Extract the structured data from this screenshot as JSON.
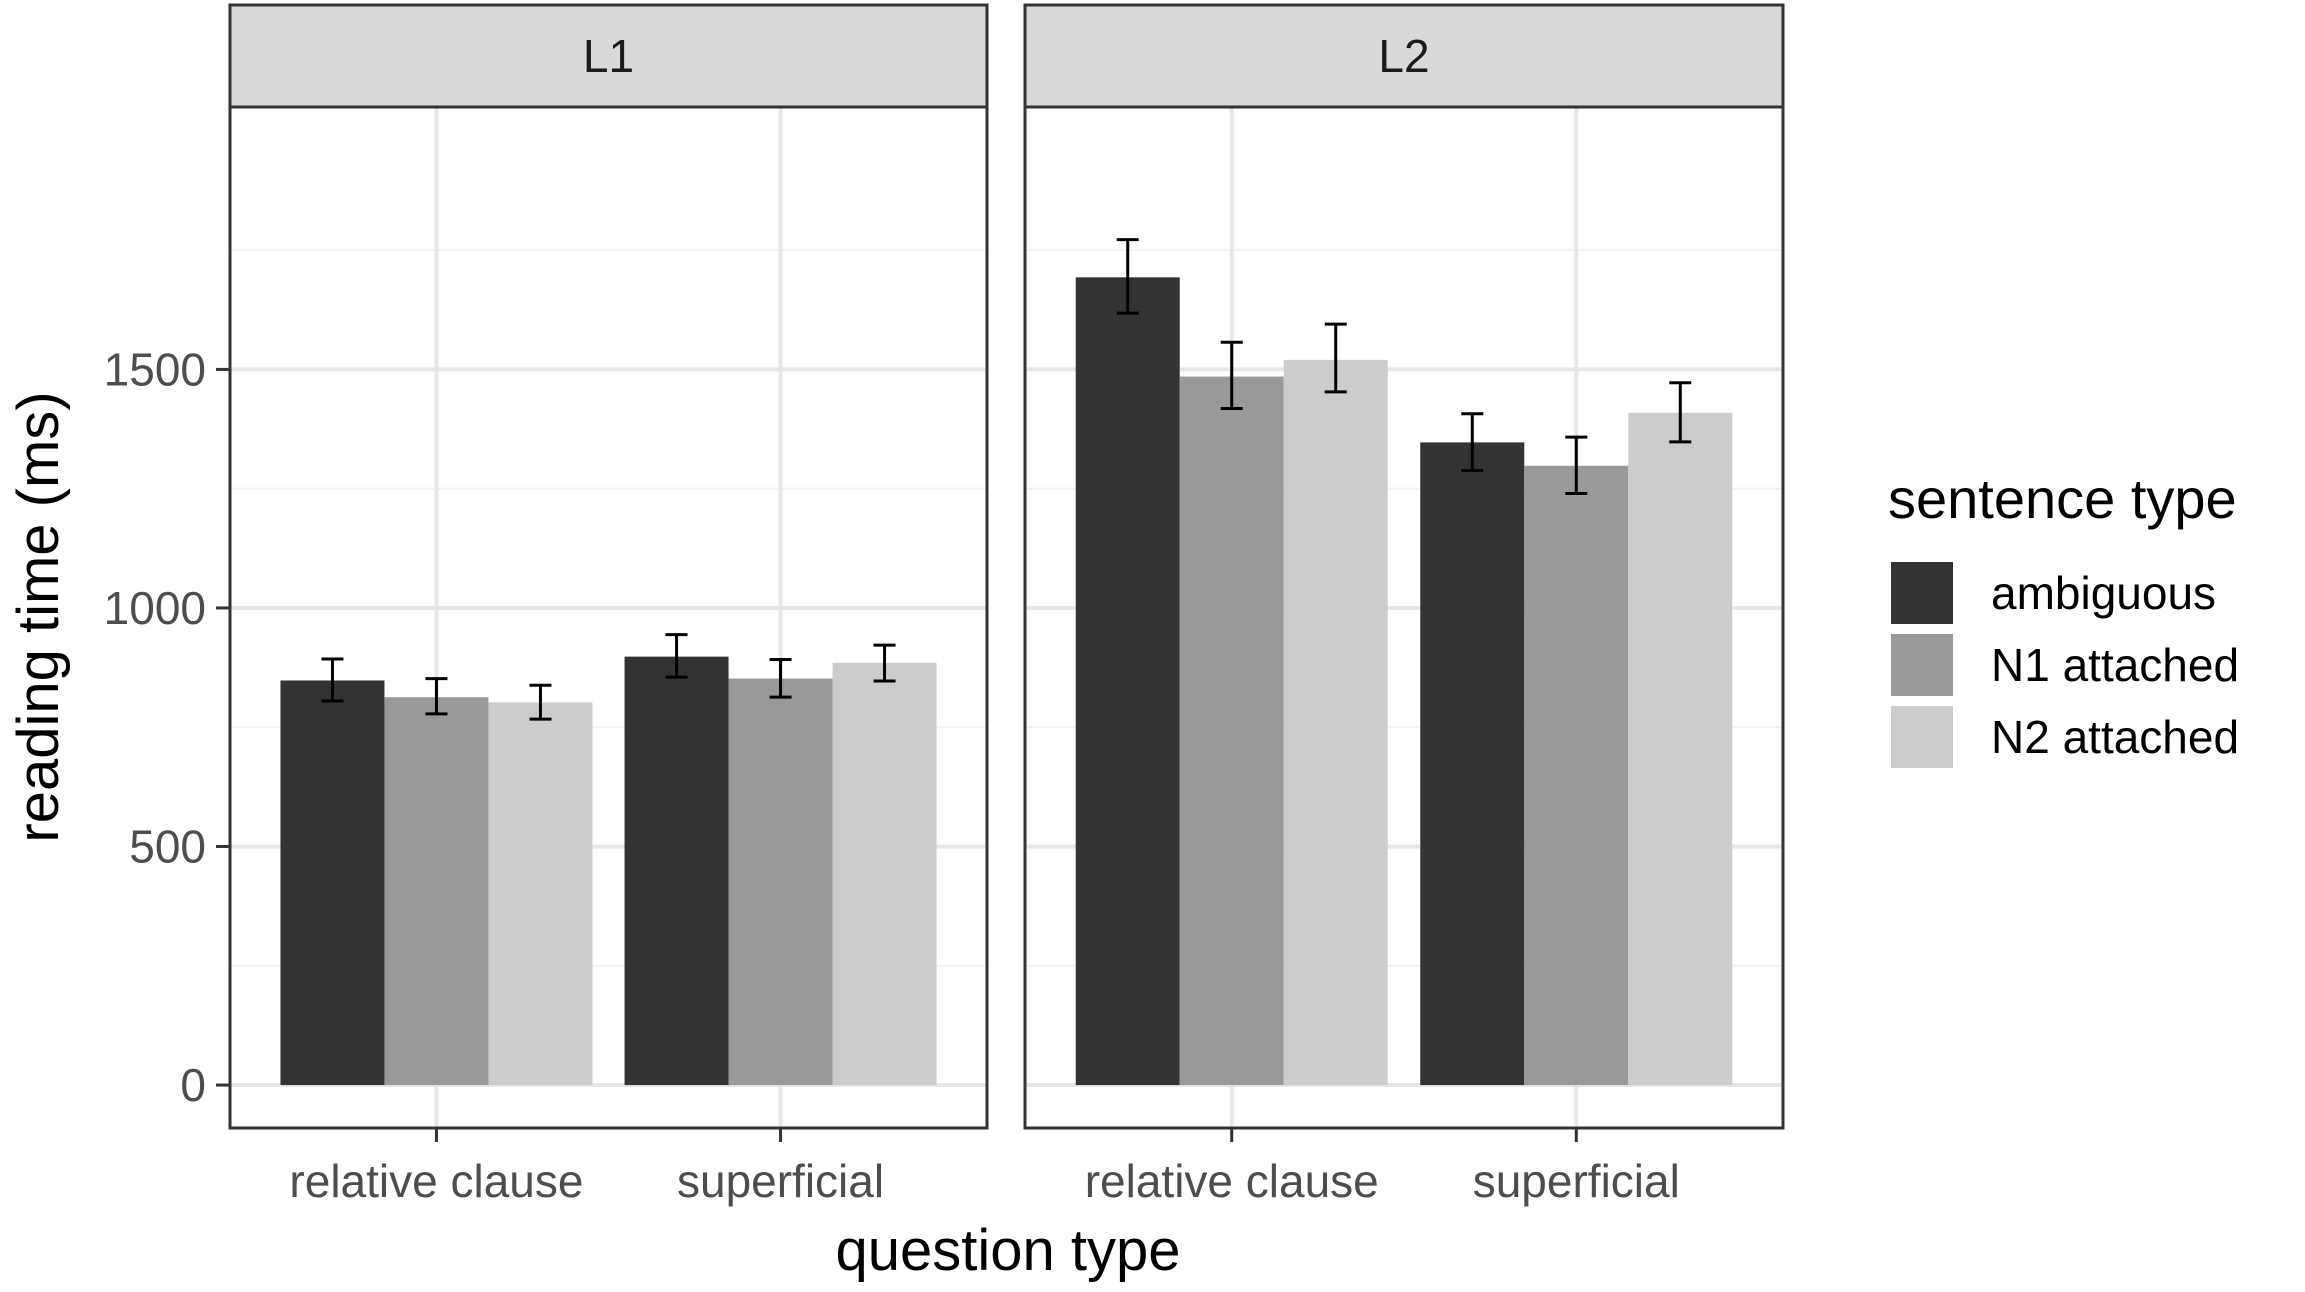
{
  "chart_data": {
    "type": "bar",
    "facet_variable": "proficiency",
    "facets": [
      {
        "label": "L1",
        "categories": [
          "relative clause",
          "superficial"
        ],
        "series": [
          {
            "name": "ambiguous",
            "values": [
              848,
              898
            ],
            "error_low": [
              805,
              855
            ],
            "error_high": [
              893,
              944
            ]
          },
          {
            "name": "N1 attached",
            "values": [
              813,
              852
            ],
            "error_low": [
              778,
              813
            ],
            "error_high": [
              852,
              892
            ]
          },
          {
            "name": "N2 attached",
            "values": [
              802,
              885
            ],
            "error_low": [
              767,
              847
            ],
            "error_high": [
              838,
              922
            ]
          }
        ]
      },
      {
        "label": "L2",
        "categories": [
          "relative clause",
          "superficial"
        ],
        "series": [
          {
            "name": "ambiguous",
            "values": [
              1693,
              1347
            ],
            "error_low": [
              1618,
              1288
            ],
            "error_high": [
              1772,
              1407
            ]
          },
          {
            "name": "N1 attached",
            "values": [
              1485,
              1298
            ],
            "error_low": [
              1418,
              1240
            ],
            "error_high": [
              1557,
              1358
            ]
          },
          {
            "name": "N2 attached",
            "values": [
              1520,
              1409
            ],
            "error_low": [
              1453,
              1348
            ],
            "error_high": [
              1595,
              1472
            ]
          }
        ]
      }
    ],
    "xlabel": "question type",
    "ylabel": "reading time (ms)",
    "ylim": [
      -90,
      2050
    ],
    "yticks": [
      0,
      500,
      1000,
      1500
    ],
    "ytick_labels": [
      "0",
      "500",
      "1000",
      "1500"
    ],
    "grid": true,
    "legend": {
      "title": "sentence type",
      "position": "right",
      "entries": [
        {
          "name": "ambiguous",
          "color": "#333333"
        },
        {
          "name": "N1 attached",
          "color": "#999999"
        },
        {
          "name": "N2 attached",
          "color": "#cccccc"
        }
      ]
    }
  }
}
